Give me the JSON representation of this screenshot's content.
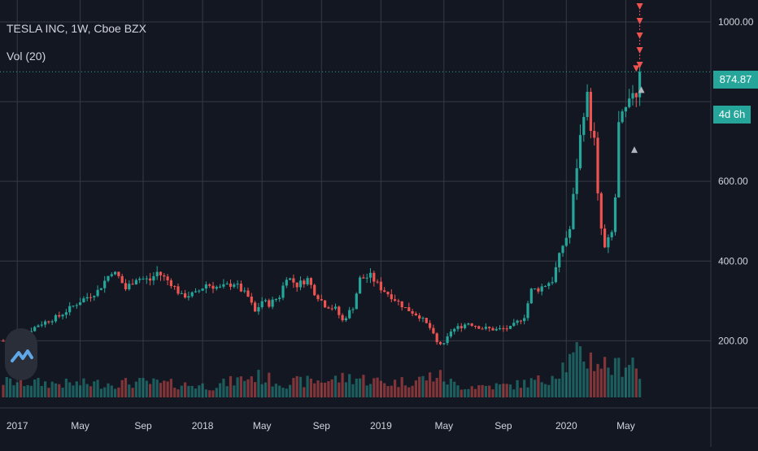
{
  "legend": {
    "title": "TESLA INC, 1W, Cboe BZX",
    "volume_label": "Vol (20)"
  },
  "price_badge": "874.87",
  "timer_badge": "4d 6h",
  "colors": {
    "background": "#131722",
    "up": "#26a69a",
    "down": "#ef5350",
    "grid": "#363a45",
    "text": "#d1d4dc"
  },
  "chart_data": {
    "type": "candlestick",
    "title": "TESLA INC, 1W, Cboe BZX",
    "interval": "1W",
    "exchange": "Cboe BZX",
    "last_price": 874.87,
    "y_ticks": [
      200,
      400,
      600,
      1000
    ],
    "y_tick_labels": [
      "200.00",
      "400.00",
      "600.00",
      "1000.00"
    ],
    "ylim": [
      56,
      1055
    ],
    "x_ticks": [
      {
        "label": "2017",
        "week": 4
      },
      {
        "label": "May",
        "week": 22
      },
      {
        "label": "Sep",
        "week": 40
      },
      {
        "label": "2018",
        "week": 57
      },
      {
        "label": "May",
        "week": 74
      },
      {
        "label": "Sep",
        "week": 91
      },
      {
        "label": "2019",
        "week": 108
      },
      {
        "label": "May",
        "week": 126
      },
      {
        "label": "Sep",
        "week": 143
      },
      {
        "label": "2020",
        "week": 161
      },
      {
        "label": "May",
        "week": 178
      }
    ],
    "volume_series": "Vol (20)",
    "grid": true,
    "anchors": [
      [
        0,
        200
      ],
      [
        5,
        210
      ],
      [
        10,
        240
      ],
      [
        16,
        262
      ],
      [
        22,
        300
      ],
      [
        27,
        325
      ],
      [
        31,
        375
      ],
      [
        33,
        360
      ],
      [
        35,
        330
      ],
      [
        38,
        358
      ],
      [
        42,
        352
      ],
      [
        44,
        372
      ],
      [
        48,
        345
      ],
      [
        51,
        312
      ],
      [
        55,
        318
      ],
      [
        58,
        342
      ],
      [
        62,
        332
      ],
      [
        66,
        345
      ],
      [
        70,
        310
      ],
      [
        72,
        272
      ],
      [
        74,
        300
      ],
      [
        76,
        292
      ],
      [
        79,
        312
      ],
      [
        81,
        362
      ],
      [
        84,
        340
      ],
      [
        87,
        355
      ],
      [
        89,
        322
      ],
      [
        92,
        290
      ],
      [
        95,
        280
      ],
      [
        97,
        250
      ],
      [
        100,
        285
      ],
      [
        102,
        355
      ],
      [
        105,
        362
      ],
      [
        108,
        332
      ],
      [
        111,
        312
      ],
      [
        115,
        282
      ],
      [
        119,
        262
      ],
      [
        122,
        232
      ],
      [
        124,
        195
      ],
      [
        126,
        190
      ],
      [
        128,
        225
      ],
      [
        133,
        245
      ],
      [
        137,
        232
      ],
      [
        141,
        228
      ],
      [
        145,
        232
      ],
      [
        149,
        262
      ],
      [
        151,
        327
      ],
      [
        153,
        330
      ],
      [
        157,
        352
      ],
      [
        160,
        440
      ],
      [
        162,
        480
      ],
      [
        164,
        640
      ],
      [
        166,
        780
      ],
      [
        167,
        810
      ],
      [
        168,
        740
      ],
      [
        169,
        700
      ],
      [
        170,
        560
      ],
      [
        171,
        480
      ],
      [
        172,
        430
      ],
      [
        174,
        470
      ],
      [
        175,
        560
      ],
      [
        176,
        740
      ],
      [
        178,
        775
      ],
      [
        179,
        790
      ],
      [
        180,
        830
      ],
      [
        181,
        820
      ],
      [
        182,
        875
      ]
    ],
    "volume_anchors": [
      [
        0,
        3.5
      ],
      [
        20,
        3
      ],
      [
        40,
        3.3
      ],
      [
        60,
        2.5
      ],
      [
        72,
        4.8
      ],
      [
        80,
        3.2
      ],
      [
        92,
        3.8
      ],
      [
        100,
        4.5
      ],
      [
        110,
        3.2
      ],
      [
        118,
        3.8
      ],
      [
        124,
        5
      ],
      [
        130,
        2.5
      ],
      [
        145,
        2.6
      ],
      [
        155,
        4
      ],
      [
        160,
        7
      ],
      [
        165,
        9.5
      ],
      [
        170,
        8
      ],
      [
        175,
        6.5
      ],
      [
        180,
        9
      ],
      [
        182,
        4
      ]
    ],
    "markers": {
      "sell_arrows_weeks": [
        181,
        182
      ],
      "buy_arrows_weeks": [
        180,
        182
      ]
    }
  }
}
